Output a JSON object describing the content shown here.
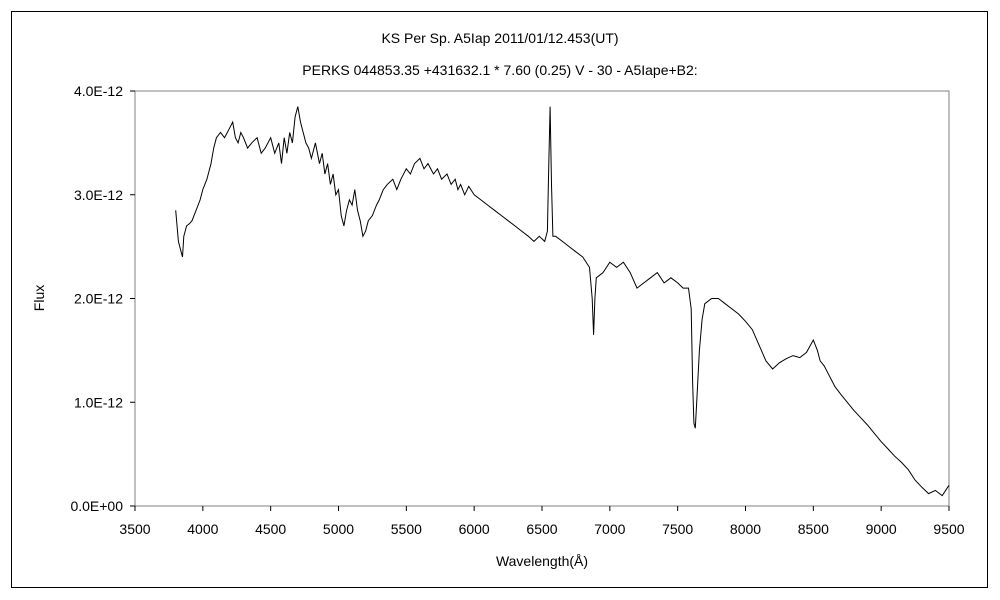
{
  "chart_data": {
    "type": "line",
    "title": "KS Per    Sp. A5Iap    2011/01/12.453(UT)",
    "subtitle": "PERKS 044853.35 +431632.1 * 7.60 (0.25) V - 30 - A5Iape+B2:",
    "xlabel": "Wavelength(Å)",
    "ylabel": "Flux",
    "xlim": [
      3500,
      9500
    ],
    "ylim": [
      0,
      4e-12
    ],
    "x_ticks": [
      3500,
      4000,
      4500,
      5000,
      5500,
      6000,
      6500,
      7000,
      7500,
      8000,
      8500,
      9000,
      9500
    ],
    "x_tick_labels": [
      "3500",
      "4000",
      "4500",
      "5000",
      "5500",
      "6000",
      "6500",
      "7000",
      "7500",
      "8000",
      "8500",
      "9000",
      "9500"
    ],
    "y_ticks": [
      0,
      1e-12,
      2e-12,
      3e-12,
      4e-12
    ],
    "y_tick_labels": [
      "0.0E+00",
      "1.0E-12",
      "2.0E-12",
      "3.0E-12",
      "4.0E-12"
    ],
    "grid": false,
    "line_color": "#000000",
    "series": [
      {
        "x": [
          3800,
          3820,
          3840,
          3850,
          3860,
          3880,
          3900,
          3920,
          3950,
          3980,
          4000,
          4030,
          4060,
          4080,
          4100,
          4130,
          4160,
          4180,
          4200,
          4220,
          4240,
          4260,
          4280,
          4300,
          4330,
          4360,
          4400,
          4430,
          4460,
          4500,
          4530,
          4560,
          4580,
          4600,
          4620,
          4640,
          4660,
          4680,
          4700,
          4720,
          4740,
          4760,
          4780,
          4800,
          4830,
          4860,
          4880,
          4900,
          4920,
          4940,
          4960,
          4980,
          5000,
          5020,
          5040,
          5060,
          5080,
          5100,
          5120,
          5140,
          5160,
          5180,
          5200,
          5220,
          5250,
          5280,
          5300,
          5330,
          5360,
          5400,
          5430,
          5460,
          5500,
          5530,
          5560,
          5600,
          5630,
          5660,
          5700,
          5730,
          5760,
          5800,
          5830,
          5860,
          5880,
          5900,
          5930,
          5960,
          6000,
          6050,
          6100,
          6150,
          6200,
          6250,
          6300,
          6350,
          6400,
          6440,
          6480,
          6520,
          6540,
          6550,
          6560,
          6570,
          6580,
          6600,
          6650,
          6700,
          6750,
          6800,
          6850,
          6870,
          6880,
          6890,
          6900,
          6950,
          7000,
          7050,
          7100,
          7150,
          7200,
          7250,
          7300,
          7350,
          7400,
          7450,
          7500,
          7540,
          7580,
          7600,
          7610,
          7620,
          7630,
          7640,
          7660,
          7680,
          7700,
          7750,
          7800,
          7850,
          7900,
          7950,
          8000,
          8050,
          8100,
          8150,
          8200,
          8250,
          8300,
          8350,
          8400,
          8450,
          8500,
          8530,
          8550,
          8580,
          8620,
          8660,
          8700,
          8750,
          8800,
          8850,
          8900,
          8950,
          9000,
          9050,
          9100,
          9150,
          9200,
          9250,
          9300,
          9350,
          9400,
          9450,
          9500
        ],
        "values": [
          2.85e-12,
          2.55e-12,
          2.45e-12,
          2.4e-12,
          2.6e-12,
          2.7e-12,
          2.72e-12,
          2.75e-12,
          2.85e-12,
          2.95e-12,
          3.05e-12,
          3.15e-12,
          3.3e-12,
          3.45e-12,
          3.55e-12,
          3.6e-12,
          3.55e-12,
          3.6e-12,
          3.65e-12,
          3.7e-12,
          3.55e-12,
          3.5e-12,
          3.6e-12,
          3.55e-12,
          3.45e-12,
          3.5e-12,
          3.55e-12,
          3.4e-12,
          3.45e-12,
          3.55e-12,
          3.4e-12,
          3.5e-12,
          3.3e-12,
          3.55e-12,
          3.4e-12,
          3.6e-12,
          3.5e-12,
          3.75e-12,
          3.85e-12,
          3.7e-12,
          3.6e-12,
          3.5e-12,
          3.45e-12,
          3.35e-12,
          3.5e-12,
          3.3e-12,
          3.4e-12,
          3.2e-12,
          3.3e-12,
          3.1e-12,
          3.2e-12,
          3e-12,
          3.05e-12,
          2.8e-12,
          2.7e-12,
          2.85e-12,
          2.95e-12,
          2.9e-12,
          3.05e-12,
          2.85e-12,
          2.75e-12,
          2.6e-12,
          2.65e-12,
          2.75e-12,
          2.8e-12,
          2.9e-12,
          2.95e-12,
          3.05e-12,
          3.1e-12,
          3.15e-12,
          3.05e-12,
          3.15e-12,
          3.25e-12,
          3.2e-12,
          3.3e-12,
          3.35e-12,
          3.25e-12,
          3.3e-12,
          3.2e-12,
          3.25e-12,
          3.15e-12,
          3.2e-12,
          3.1e-12,
          3.15e-12,
          3.05e-12,
          3.1e-12,
          3e-12,
          3.08e-12,
          3e-12,
          2.95e-12,
          2.9e-12,
          2.85e-12,
          2.8e-12,
          2.75e-12,
          2.7e-12,
          2.65e-12,
          2.6e-12,
          2.55e-12,
          2.6e-12,
          2.55e-12,
          2.65e-12,
          3.3e-12,
          3.85e-12,
          3.1e-12,
          2.6e-12,
          2.6e-12,
          2.55e-12,
          2.5e-12,
          2.45e-12,
          2.4e-12,
          2.3e-12,
          2e-12,
          1.65e-12,
          2e-12,
          2.2e-12,
          2.25e-12,
          2.35e-12,
          2.3e-12,
          2.35e-12,
          2.25e-12,
          2.1e-12,
          2.15e-12,
          2.2e-12,
          2.25e-12,
          2.15e-12,
          2.2e-12,
          2.15e-12,
          2.1e-12,
          2.1e-12,
          1.9e-12,
          1.2e-12,
          8e-13,
          7.5e-13,
          1e-12,
          1.5e-12,
          1.8e-12,
          1.95e-12,
          2e-12,
          2e-12,
          1.95e-12,
          1.9e-12,
          1.85e-12,
          1.78e-12,
          1.7e-12,
          1.55e-12,
          1.4e-12,
          1.32e-12,
          1.38e-12,
          1.42e-12,
          1.45e-12,
          1.43e-12,
          1.48e-12,
          1.6e-12,
          1.5e-12,
          1.4e-12,
          1.35e-12,
          1.25e-12,
          1.15e-12,
          1.08e-12,
          1e-12,
          9.2e-13,
          8.5e-13,
          7.8e-13,
          7e-13,
          6.2e-13,
          5.5e-13,
          4.8e-13,
          4.2e-13,
          3.5e-13,
          2.5e-13,
          1.8e-13,
          1.2e-13,
          1.5e-13,
          1e-13,
          2e-13
        ]
      }
    ]
  }
}
